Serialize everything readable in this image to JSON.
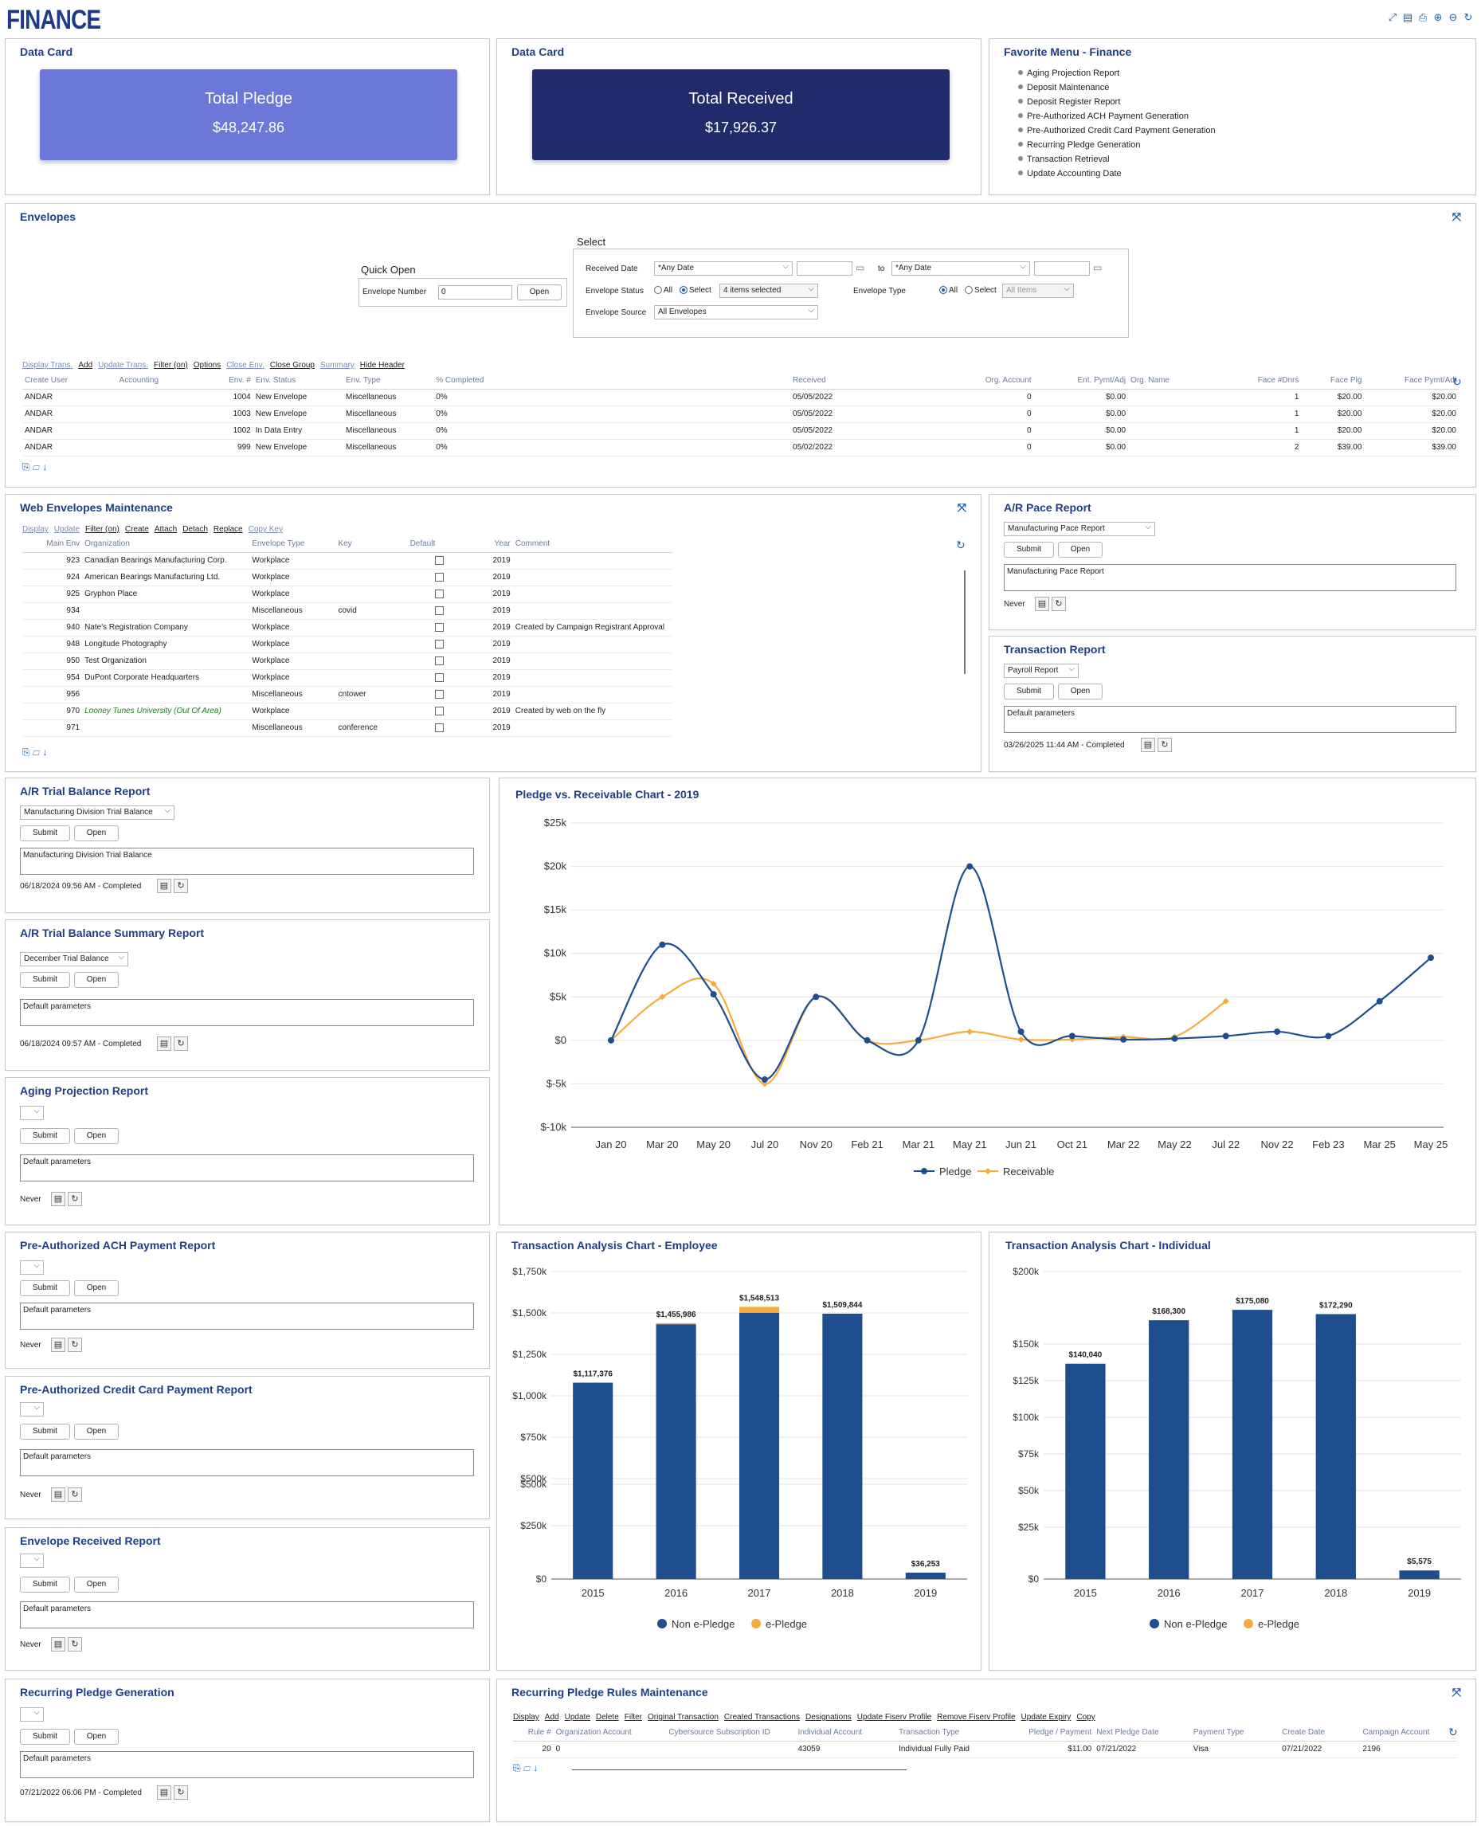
{
  "app": {
    "logo": "FINANCE"
  },
  "cards": {
    "title1": "Data Card",
    "title2": "Data Card",
    "pledge_label": "Total Pledge",
    "pledge_value": "$48,247.86",
    "received_label": "Total Received",
    "received_value": "$17,926.37",
    "pledge_color": "#6b78d8",
    "received_color": "#212a6b"
  },
  "favorites": {
    "title": "Favorite Menu - Finance",
    "items": [
      "Aging Projection Report",
      "Deposit Maintenance",
      "Deposit Register Report",
      "Pre-Authorized ACH Payment Generation",
      "Pre-Authorized Credit Card Payment Generation",
      "Recurring Pledge Generation",
      "Transaction Retrieval",
      "Update Accounting Date"
    ]
  },
  "envelopes": {
    "title": "Envelopes",
    "quick_open": "Quick Open",
    "env_number_label": "Envelope Number",
    "env_number_value": "0",
    "open": "Open",
    "select_title": "Select",
    "received_date_label": "Received Date",
    "received_date_from": "*Any Date",
    "to": "to",
    "received_date_to": "*Any Date",
    "status_label": "Envelope Status",
    "all": "All",
    "select": "Select",
    "status_items": "4 items selected",
    "type_label": "Envelope Type",
    "type_items": "All Items",
    "source_label": "Envelope Source",
    "source_value": "All Envelopes",
    "links": [
      "Display Trans.",
      "Add",
      "Update Trans.",
      "Filter (on)",
      "Options",
      "Close Env.",
      "Close Group",
      "Summary",
      "Hide Header"
    ],
    "headers": [
      "Create User",
      "Accounting",
      "Env. #",
      "Env. Status",
      "Env. Type",
      "% Completed",
      "Received",
      "Org. Account",
      "Ent. Pymt/Adj",
      "Org. Name",
      "Face #Dnrs",
      "Face Plg",
      "Face Pymt/Adj"
    ],
    "rows": [
      [
        "ANDAR",
        "",
        "1004",
        "New Envelope",
        "Miscellaneous",
        "0%",
        "05/05/2022",
        "0",
        "$0.00",
        "",
        "1",
        "$20.00",
        "$20.00"
      ],
      [
        "ANDAR",
        "",
        "1003",
        "New Envelope",
        "Miscellaneous",
        "0%",
        "05/05/2022",
        "0",
        "$0.00",
        "",
        "1",
        "$20.00",
        "$20.00"
      ],
      [
        "ANDAR",
        "",
        "1002",
        "In Data Entry",
        "Miscellaneous",
        "0%",
        "05/05/2022",
        "0",
        "$0.00",
        "",
        "1",
        "$20.00",
        "$20.00"
      ],
      [
        "ANDAR",
        "",
        "999",
        "New Envelope",
        "Miscellaneous",
        "0%",
        "05/02/2022",
        "0",
        "$0.00",
        "",
        "2",
        "$39.00",
        "$39.00"
      ]
    ]
  },
  "web_env": {
    "title": "Web Envelopes Maintenance",
    "links": [
      "Display",
      "Update",
      "Filter (on)",
      "Create",
      "Attach",
      "Detach",
      "Replace",
      "Copy Key"
    ],
    "headers": [
      "Main Env",
      "Organization",
      "Envelope Type",
      "Key",
      "Default",
      "Year",
      "Comment"
    ],
    "rows": [
      [
        "923",
        "Canadian Bearings Manufacturing Corp.",
        "Workplace",
        "",
        "",
        "2019",
        ""
      ],
      [
        "924",
        "American Bearings Manufacturing Ltd.",
        "Workplace",
        "",
        "",
        "2019",
        ""
      ],
      [
        "925",
        "Gryphon Place",
        "Workplace",
        "",
        "",
        "2019",
        ""
      ],
      [
        "934",
        "",
        "Miscellaneous",
        "covid",
        "",
        "2019",
        ""
      ],
      [
        "940",
        "Nate's Registration Company",
        "Workplace",
        "",
        "",
        "2019",
        "Created by Campaign Registrant Approval"
      ],
      [
        "948",
        "Longitude Photography",
        "Workplace",
        "",
        "",
        "2019",
        ""
      ],
      [
        "950",
        "Test Organization",
        "Workplace",
        "",
        "",
        "2019",
        ""
      ],
      [
        "954",
        "DuPont Corporate Headquarters",
        "Workplace",
        "",
        "",
        "2019",
        ""
      ],
      [
        "956",
        "",
        "Miscellaneous",
        "cntower",
        "",
        "2019",
        ""
      ],
      [
        "970",
        "Looney Tunes University (Out Of Area)",
        "Workplace",
        "",
        "",
        "2019",
        "Created by web on the fly"
      ],
      [
        "971",
        "",
        "Miscellaneous",
        "conference",
        "",
        "2019",
        ""
      ]
    ]
  },
  "reports": {
    "submit": "Submit",
    "open": "Open",
    "default_params": "Default parameters",
    "never": "Never",
    "ar_pace": {
      "title": "A/R Pace Report",
      "select": "Manufacturing Pace Report",
      "params": "Manufacturing Pace Report"
    },
    "transaction": {
      "title": "Transaction Report",
      "select": "Payroll Report",
      "status": "03/26/2025 11:44 AM - Completed"
    },
    "trial": {
      "title": "A/R Trial Balance Report",
      "select": "Manufacturing Division Trial Balance",
      "params": "Manufacturing Division Trial Balance",
      "status": "06/18/2024 09:56 AM - Completed"
    },
    "trial_summary": {
      "title": "A/R Trial Balance Summary Report",
      "select": "December Trial Balance",
      "status": "06/18/2024 09:57 AM - Completed"
    },
    "aging": {
      "title": "Aging Projection Report"
    },
    "ach": {
      "title": "Pre-Authorized ACH Payment Report"
    },
    "cc": {
      "title": "Pre-Authorized Credit Card Payment Report"
    },
    "env_received": {
      "title": "Envelope Received Report"
    },
    "recurring": {
      "title": "Recurring Pledge Generation",
      "status": "07/21/2022 06:06 PM - Completed"
    }
  },
  "recurring_rules": {
    "title": "Recurring Pledge Rules Maintenance",
    "links": [
      "Display",
      "Add",
      "Update",
      "Delete",
      "Filter",
      "Original Transaction",
      "Created Transactions",
      "Designations",
      "Update Fiserv Profile",
      "Remove Fiserv Profile",
      "Update Expiry",
      "Copy"
    ],
    "headers": [
      "Rule #",
      "Organization Account",
      "Cybersource Subscription ID",
      "Individual Account",
      "Transaction Type",
      "Pledge / Payment",
      "Next Pledge Date",
      "Payment Type",
      "Create Date",
      "Campaign Account"
    ],
    "row": [
      "20",
      "0",
      "",
      "43059",
      "Individual Fully Paid",
      "$11.00",
      "07/21/2022",
      "Visa",
      "07/21/2022",
      "2196"
    ]
  },
  "chart_data": [
    {
      "type": "line",
      "title": "Pledge vs. Receivable Chart - 2019",
      "categories": [
        "Jan 20",
        "Mar 20",
        "May 20",
        "Jul 20",
        "Nov 20",
        "Feb 21",
        "Mar 21",
        "May 21",
        "Jun 21",
        "Oct 21",
        "Mar 22",
        "May 22",
        "Jul 22",
        "Nov 22",
        "Feb 23",
        "Mar 25",
        "May 25"
      ],
      "yticks": [
        "$25k",
        "$20k",
        "$15k",
        "$10k",
        "$5k",
        "$0",
        "$-5k",
        "$-10k"
      ],
      "ylim": [
        -10000,
        25000
      ],
      "series": [
        {
          "name": "Pledge",
          "color": "#1f4e8f",
          "x": [
            0,
            1,
            2,
            3,
            4,
            5,
            6,
            7,
            8,
            9,
            10,
            11,
            12,
            13,
            14,
            15,
            16
          ],
          "values": [
            0,
            11000,
            5300,
            -4500,
            5000,
            0,
            0,
            20000,
            1000,
            500,
            100,
            200,
            500,
            1000,
            500,
            4500,
            9500
          ]
        },
        {
          "name": "Receivable",
          "color": "#f5ac3c",
          "x": [
            0,
            1,
            2,
            3,
            4,
            5,
            6,
            7,
            8,
            9,
            10,
            11,
            12
          ],
          "values": [
            0,
            5000,
            6500,
            -5000,
            5000,
            0,
            0,
            1000,
            100,
            100,
            400,
            400,
            4500
          ]
        }
      ]
    },
    {
      "type": "bar",
      "title": "Transaction Analysis Chart - Employee",
      "categories": [
        "2015",
        "2016",
        "2017",
        "2018",
        "2019"
      ],
      "yticks": [
        "$1,750k",
        "$1,500k",
        "$1,250k",
        "$1,000k",
        "$750k",
        "$500k",
        "$500k",
        "$250k",
        "$0"
      ],
      "ylim": [
        0,
        1750000
      ],
      "series": [
        {
          "name": "Non e-Pledge",
          "color": "#1f4e8f",
          "values": [
            1117376,
            1450000,
            1515000,
            1509844,
            36253
          ]
        },
        {
          "name": "e-Pledge",
          "color": "#f5ac3c",
          "values": [
            0,
            6000,
            34000,
            0,
            0
          ]
        }
      ],
      "labels": [
        "$1,117,376",
        "$1,455,986",
        "$1,548,513",
        "$1,509,844",
        "$36,253"
      ]
    },
    {
      "type": "bar",
      "title": "Transaction Analysis Chart - Individual",
      "categories": [
        "2015",
        "2016",
        "2017",
        "2018",
        "2019"
      ],
      "yticks": [
        "$200k",
        "$150k",
        "$125k",
        "$100k",
        "$75k",
        "$50k",
        "$25k",
        "$0"
      ],
      "ylim": [
        0,
        200000
      ],
      "series": [
        {
          "name": "Non e-Pledge",
          "color": "#1f4e8f",
          "values": [
            140040,
            168300,
            175080,
            172290,
            5575
          ]
        },
        {
          "name": "e-Pledge",
          "color": "#f5ac3c",
          "values": [
            0,
            0,
            0,
            0,
            0
          ]
        }
      ],
      "labels": [
        "$140,040",
        "$168,300",
        "$175,080",
        "$172,290",
        "$5,575"
      ]
    }
  ]
}
